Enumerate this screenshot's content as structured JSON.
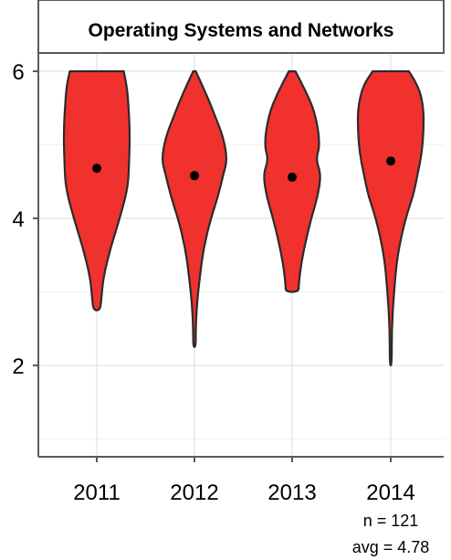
{
  "chart_data": {
    "type": "violin",
    "title": "Operating Systems and Networks",
    "categories": [
      "2011",
      "2012",
      "2013",
      "2014"
    ],
    "means": [
      4.68,
      4.58,
      4.56,
      4.78
    ],
    "ranges": [
      [
        2.75,
        6
      ],
      [
        2.25,
        6
      ],
      [
        3.0,
        6
      ],
      [
        2.0,
        6
      ]
    ],
    "ylim": [
      0.8,
      6.4
    ],
    "yticks": [
      2,
      4,
      6
    ],
    "grid": true,
    "fill_color": "#f0312e",
    "outline_color": "#2b2b2b",
    "annotation": {
      "n": "n = 121",
      "avg": "avg = 4.78"
    }
  }
}
